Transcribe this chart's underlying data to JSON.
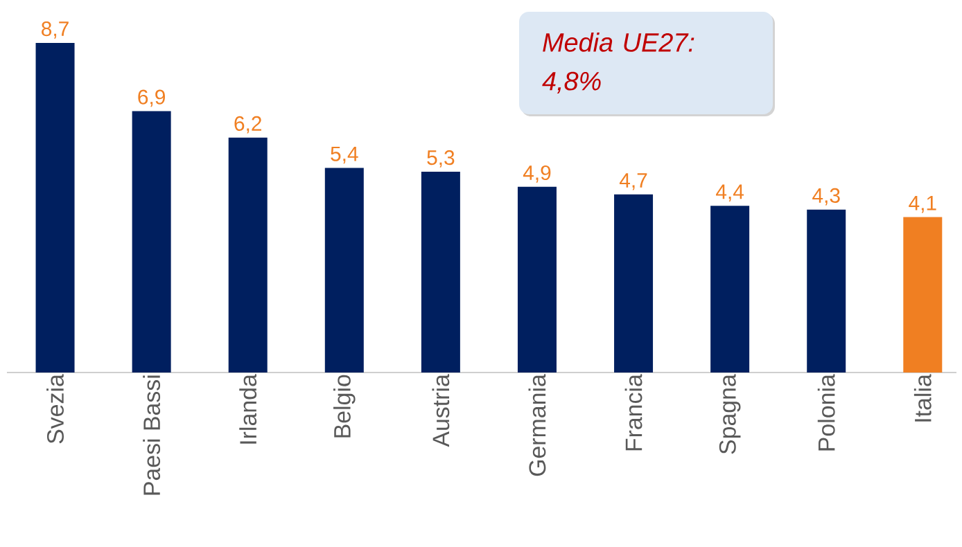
{
  "chart_data": {
    "type": "bar",
    "categories": [
      "Svezia",
      "Paesi Bassi",
      "Irlanda",
      "Belgio",
      "Austria",
      "Germania",
      "Francia",
      "Spagna",
      "Polonia",
      "Italia"
    ],
    "values": [
      8.7,
      6.9,
      6.2,
      5.4,
      5.3,
      4.9,
      4.7,
      4.4,
      4.3,
      4.1
    ],
    "colors": [
      "#001f5f",
      "#001f5f",
      "#001f5f",
      "#001f5f",
      "#001f5f",
      "#001f5f",
      "#001f5f",
      "#001f5f",
      "#001f5f",
      "#f07f22"
    ],
    "value_labels": [
      "8,7",
      "6,9",
      "6,2",
      "5,4",
      "5,3",
      "4,9",
      "4,7",
      "4,4",
      "4,3",
      "4,1"
    ],
    "annotations": [
      "Media UE27:",
      "4,8%"
    ]
  }
}
